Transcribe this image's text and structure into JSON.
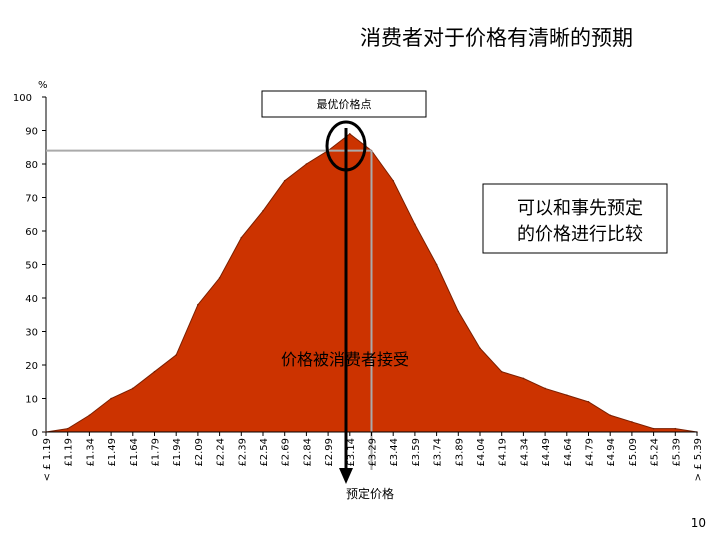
{
  "page": {
    "title": "消费者对于价格有清晰的预期",
    "unit": "%",
    "page_number": "10"
  },
  "annotations": {
    "optimal_price_point": "最优价格点",
    "comparable_note_line1": "可以和事先预定",
    "comparable_note_line2": "的价格进行比较",
    "accepted_label": "价格被消费者接受",
    "preset_price_label": "预定价格"
  },
  "colors": {
    "area_fill": "#cc3300",
    "area_stroke": "#7a1f00",
    "reference_line": "#aaaaaa",
    "arrow": "#000000"
  },
  "chart_data": {
    "type": "area",
    "title": "消费者对于价格有清晰的预期",
    "ylabel": "%",
    "ylim": [
      0,
      100
    ],
    "yticks": [
      0,
      10,
      20,
      30,
      40,
      50,
      60,
      70,
      80,
      90,
      100
    ],
    "grid": false,
    "categories": [
      "< £ 1.19",
      "£1.19",
      "£1.34",
      "£1.49",
      "£1.64",
      "£1.79",
      "£1.94",
      "£2.09",
      "£2.24",
      "£2.39",
      "£2.54",
      "£2.69",
      "£2.84",
      "£2.99",
      "£3.14",
      "£3.29",
      "£3.44",
      "£3.59",
      "£3.74",
      "£3.89",
      "£4.04",
      "£4.19",
      "£4.34",
      "£4.49",
      "£4.64",
      "£4.79",
      "£4.94",
      "£5.09",
      "£5.24",
      "£5.39",
      "> £ 5.39"
    ],
    "values": [
      0,
      1,
      5,
      10,
      13,
      18,
      23,
      38,
      46,
      58,
      66,
      75,
      80,
      84,
      89,
      84,
      75,
      62,
      50,
      36,
      25,
      18,
      16,
      13,
      11,
      9,
      5,
      3,
      1,
      1,
      0
    ],
    "highlight_optimal": "£3.14",
    "highlight_preset": "£3.29",
    "preset_reference_value": 84
  }
}
